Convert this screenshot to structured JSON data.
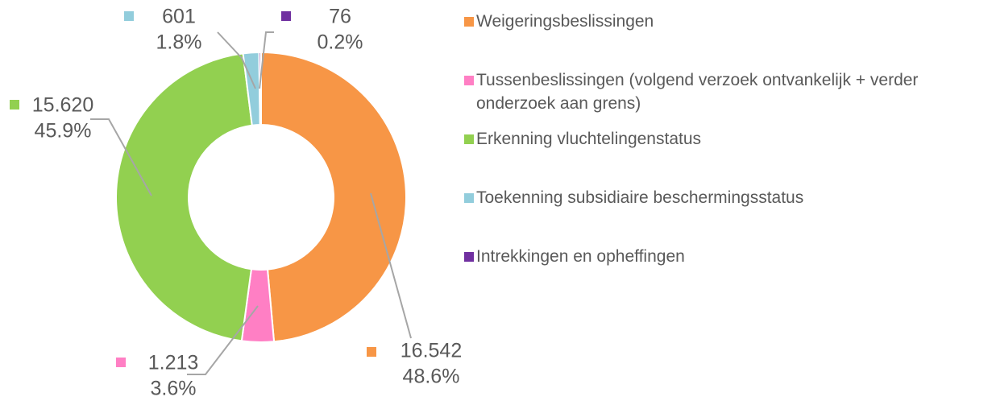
{
  "chart_data": {
    "type": "donut",
    "categories": [
      "Weigeringsbeslissingen",
      "Tussenbeslissingen (volgend verzoek ontvankelijk + verder onderzoek aan grens)",
      "Erkenning vluchtelingenstatus",
      "Toekenning subsidiaire beschermingsstatus",
      "Intrekkingen en opheffingen"
    ],
    "values": [
      16542,
      1213,
      15620,
      601,
      76
    ],
    "value_labels": [
      "16.542",
      "1.213",
      "15.620",
      "601",
      "76"
    ],
    "percentages": [
      48.6,
      3.6,
      45.9,
      1.8,
      0.2
    ],
    "percentage_labels": [
      "48.6%",
      "3.6%",
      "45.9%",
      "1.8%",
      "0.2%"
    ],
    "colors": [
      "#f79646",
      "#ff7fc4",
      "#92d050",
      "#92cddc",
      "#7030a0"
    ],
    "legend": "right"
  }
}
